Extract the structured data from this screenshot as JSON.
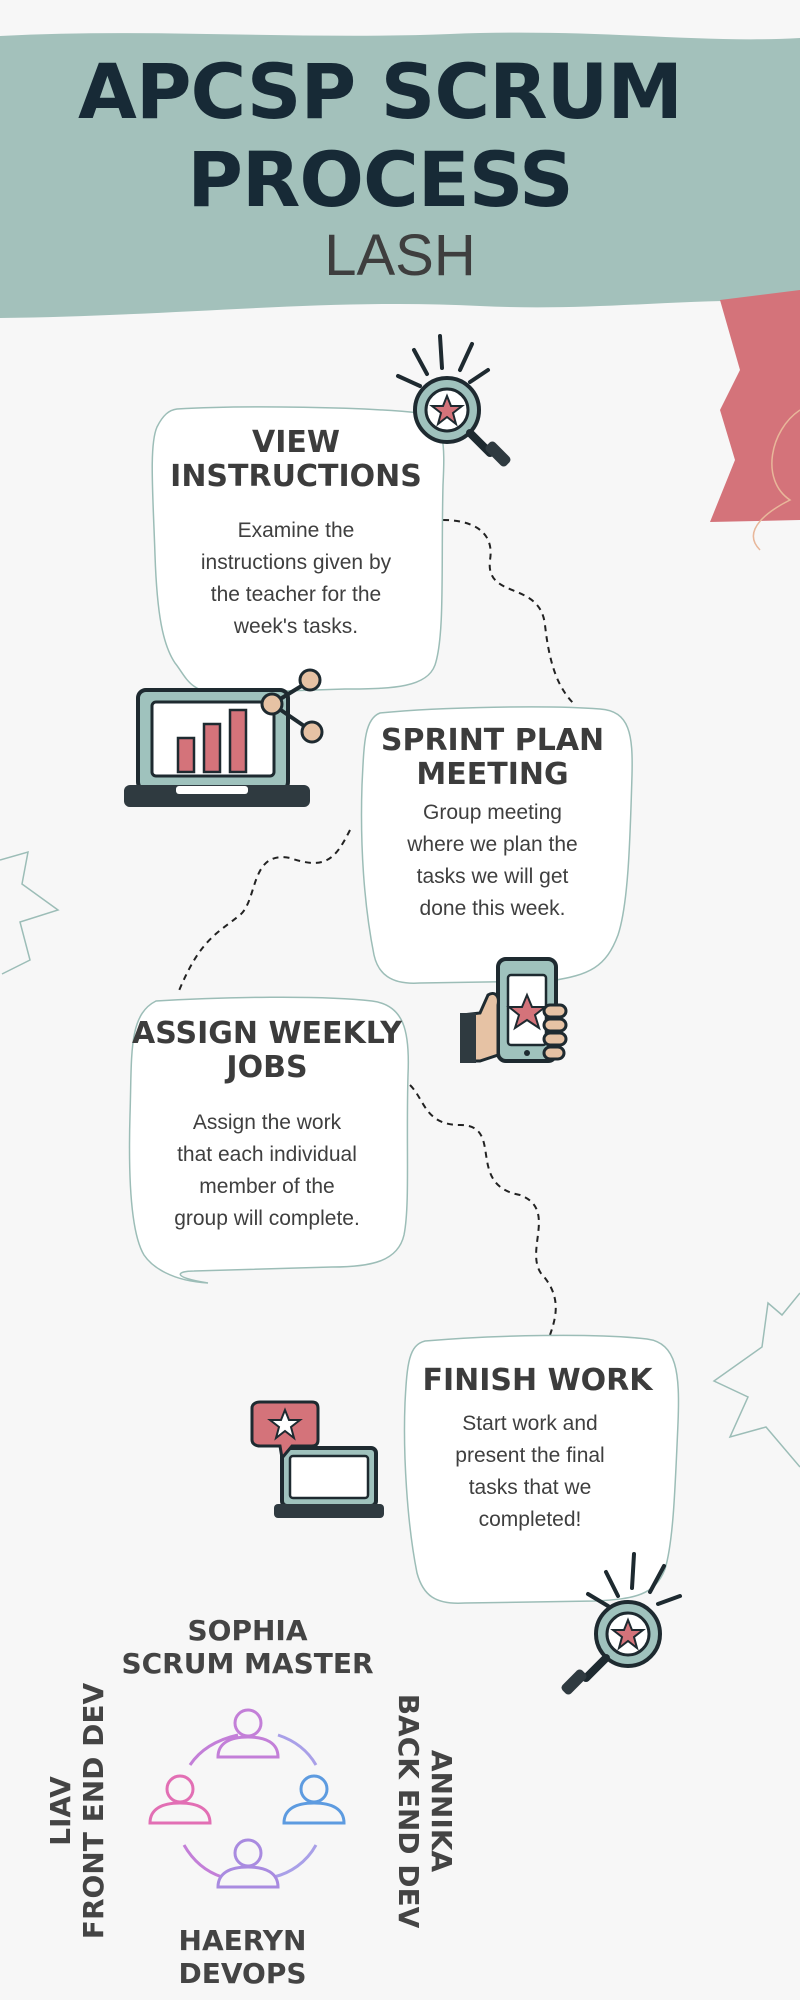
{
  "header": {
    "title_line1": "APCSP SCRUM",
    "title_line2": "PROCESS",
    "subtitle": "LASH"
  },
  "steps": [
    {
      "title_line1": "VIEW",
      "title_line2": "INSTRUCTIONS",
      "text": [
        "Examine the",
        "instructions given by",
        "the teacher for the",
        "week's tasks."
      ]
    },
    {
      "title_line1": "SPRINT PLAN",
      "title_line2": "MEETING",
      "text": [
        "Group meeting",
        "where we plan the",
        "tasks we will get",
        "done this week."
      ]
    },
    {
      "title_line1": "ASSIGN WEEKLY",
      "title_line2": "JOBS",
      "text": [
        "Assign the work",
        "that each individual",
        "member of the",
        "group will complete."
      ]
    },
    {
      "title_line1": "FINISH WORK",
      "title_line2": "",
      "text": [
        "Start work and",
        "present the final",
        "tasks that we",
        "completed!"
      ]
    }
  ],
  "team": {
    "top": {
      "name": "SOPHIA",
      "role": "SCRUM MASTER"
    },
    "left": {
      "name": "LIAV",
      "role": "FRONT END DEV"
    },
    "right": {
      "name": "ANNIKA",
      "role": "BACK END DEV"
    },
    "bottom": {
      "name": "HAERYN",
      "role": "DEVOPS"
    }
  },
  "colors": {
    "header_band": "#a3c1bb",
    "title": "#172a36",
    "accent_red": "#d4737a",
    "card_border": "#9cbdb7",
    "icon_teal": "#9fc2bd",
    "icon_dark": "#2f3a40"
  },
  "icons": [
    "magnifier-star-icon",
    "laptop-chart-icon",
    "phone-star-icon",
    "laptop-star-icon",
    "team-cycle-icon"
  ]
}
